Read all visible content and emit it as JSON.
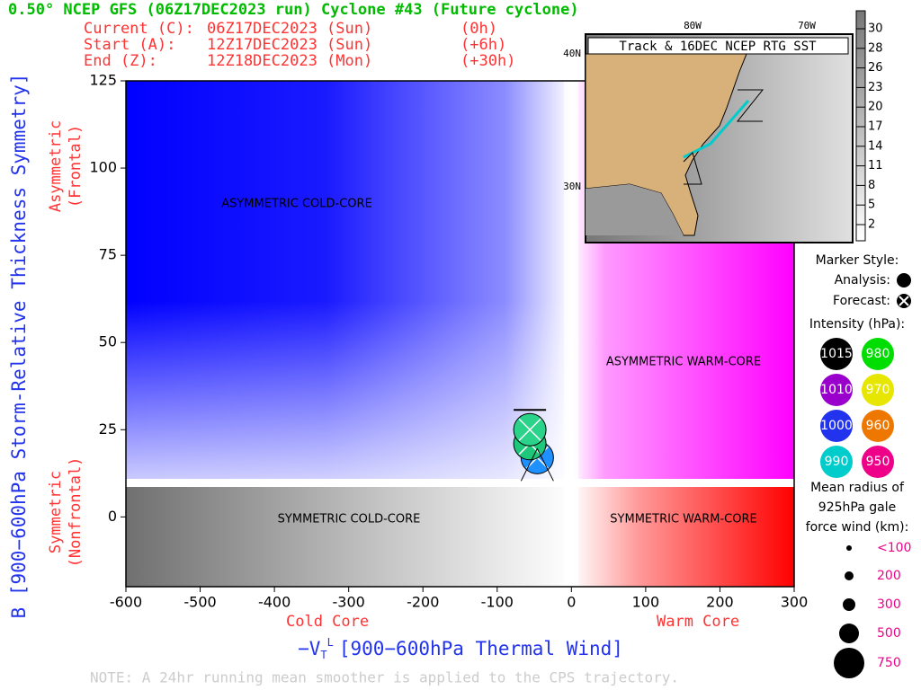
{
  "header": {
    "title": "0.50° NCEP GFS (06Z17DEC2023 run) Cyclone #43 (Future cyclone)",
    "lines": [
      [
        "Current (C):",
        "06Z17DEC2023 (Sun)",
        "(0h)"
      ],
      [
        "Start (A):",
        "12Z17DEC2023 (Sun)",
        "(+6h)"
      ],
      [
        "End (Z):",
        "12Z18DEC2023 (Mon)",
        "(+30h)"
      ]
    ]
  },
  "chart_data": {
    "type": "scatter",
    "x_label": {
      "symbol": "−V",
      "sub": "T",
      "sup": "L",
      "text": "[900−600hPa Thermal Wind]"
    },
    "y_label": "B [900−600hPa Storm-Relative Thickness Symmetry]",
    "x_side_labels": [
      "Cold Core",
      "Warm Core"
    ],
    "y_side_labels": [
      [
        "Asymmetric",
        "(Frontal)"
      ],
      [
        "Symmetric",
        "(Nonfrontal)"
      ]
    ],
    "regions": [
      "ASYMMETRIC COLD-CORE",
      "ASYMMETRIC WARM-CORE",
      "SYMMETRIC COLD-CORE",
      "SYMMETRIC WARM-CORE"
    ],
    "xlim": [
      -600,
      300
    ],
    "xticks": [
      -600,
      -500,
      -400,
      -300,
      -200,
      -100,
      0,
      100,
      200,
      300
    ],
    "ylim": [
      -20,
      125
    ],
    "yticks": [
      0,
      25,
      50,
      75,
      100,
      125
    ],
    "x": [
      -46,
      -56,
      -56
    ],
    "y": [
      17,
      21,
      25
    ],
    "colors": [
      "#1e90ff",
      "#1ec87a",
      "#2ad28a"
    ]
  },
  "inset": {
    "title": "Track & 16DEC NCEP RTG SST",
    "lat_labels": [
      "40N",
      "30N"
    ],
    "lon_labels": [
      "80W",
      "70W"
    ],
    "colorbar_ticks": [
      30,
      28,
      26,
      23,
      20,
      17,
      14,
      11,
      8,
      5,
      2
    ]
  },
  "legend": {
    "marker_title": "Marker Style:",
    "analysis": "Analysis:",
    "forecast": "Forecast:",
    "intensity_title": "Intensity (hPa):",
    "intensity": [
      {
        "label": "1015",
        "color": "#000000"
      },
      {
        "label": "980",
        "color": "#00dd00"
      },
      {
        "label": "1010",
        "color": "#9900cc"
      },
      {
        "label": "970",
        "color": "#e6e600"
      },
      {
        "label": "1000",
        "color": "#2233ee"
      },
      {
        "label": "960",
        "color": "#ee7700"
      },
      {
        "label": "990",
        "color": "#00cccc"
      },
      {
        "label": "950",
        "color": "#ee0088"
      }
    ],
    "radius_title": [
      "Mean radius of",
      "925hPa gale",
      "force wind (km):"
    ],
    "radius": [
      "<100",
      "200",
      "300",
      "500",
      "750"
    ]
  },
  "note": "NOTE:  A 24hr running mean smoother is applied to the CPS trajectory."
}
